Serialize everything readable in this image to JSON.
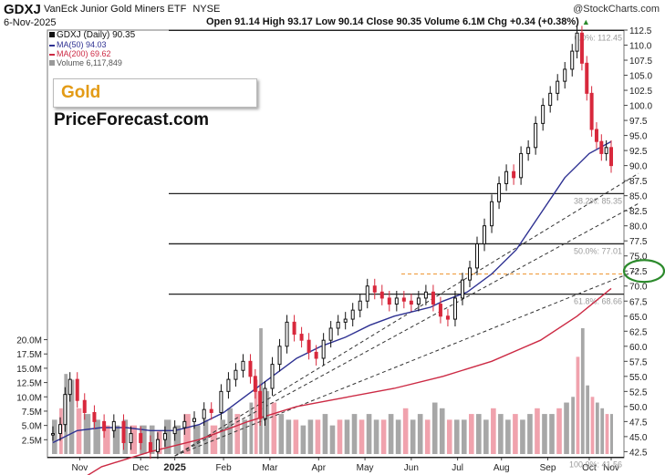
{
  "header": {
    "ticker": "GDXJ",
    "name": "VanEck Junior Gold Miners ETF",
    "exchange": "NYSE",
    "date": "6-Nov-2025",
    "ohlc": "Open 91.14  High 93.17  Low 90.14  Close 90.35  Volume 6.1M  Chg +0.34 (+0.38%)",
    "watermark": "@StockCharts.com",
    "arrow": "▲"
  },
  "legend": {
    "price": "GDXJ (Daily) 90.35",
    "ma50": "MA(50) 94.03",
    "ma200": "MA(200) 69.62",
    "volume": "Volume 6,117,849"
  },
  "logo": {
    "part1": "Gold",
    "part2": "PriceForecast.com"
  },
  "colors": {
    "up": "#111111",
    "down": "#d8283c",
    "ma50": "#2e3192",
    "ma200": "#cc2a44",
    "vol_up": "#a7a7a7",
    "vol_down": "#f0a2ad",
    "fib_line": "#222222",
    "orange": "#f0a24c",
    "circle": "#2c8a2c"
  },
  "chart_data": {
    "type": "candlestick",
    "x_labels": [
      "Nov",
      "Dec",
      "2025",
      "Feb",
      "Mar",
      "Apr",
      "May",
      "Jun",
      "Jul",
      "Aug",
      "Sep",
      "Oct",
      "Nov"
    ],
    "price_ticks": [
      "112.5",
      "110.0",
      "107.5",
      "105.0",
      "102.5",
      "100.0",
      "97.5",
      "95.0",
      "92.5",
      "90.0",
      "87.5",
      "85.0",
      "82.5",
      "80.0",
      "77.5",
      "75.0",
      "72.5",
      "70.0",
      "67.5",
      "65.0",
      "62.5",
      "60.0",
      "57.5",
      "55.0",
      "52.5",
      "50.0",
      "47.5",
      "45.0",
      "42.5"
    ],
    "price_min": 41.5,
    "price_max": 112.5,
    "volume_ticks": [
      "20.0M",
      "17.5M",
      "15.0M",
      "12.5M",
      "10.0M",
      "7.5M",
      "5.0M",
      "2.5M"
    ],
    "fib_levels": [
      {
        "label": "0.0%: 112.45",
        "price": 112.45
      },
      {
        "label": "38.2%: 85.35",
        "price": 85.35
      },
      {
        "label": "50.0%: 77.01",
        "price": 77.01
      },
      {
        "label": "61.8%: 68.66",
        "price": 68.66
      },
      {
        "label": "100.0%: 41.56",
        "price": 41.56
      }
    ],
    "horizontal_dashed": 72.0,
    "circled_level": "72.5",
    "close_path": [
      [
        0,
        45.5
      ],
      [
        6,
        47
      ],
      [
        10,
        52
      ],
      [
        14,
        54.5
      ],
      [
        20,
        51
      ],
      [
        26,
        49
      ],
      [
        34,
        47.5
      ],
      [
        42,
        46
      ],
      [
        50,
        47.5
      ],
      [
        58,
        44
      ],
      [
        64,
        45.5
      ],
      [
        72,
        44
      ],
      [
        80,
        42.5
      ],
      [
        86,
        44.5
      ],
      [
        92,
        45.5
      ],
      [
        100,
        46.5
      ],
      [
        108,
        47.5
      ],
      [
        116,
        48
      ],
      [
        124,
        49.5
      ],
      [
        130,
        49
      ],
      [
        138,
        52.5
      ],
      [
        144,
        54.5
      ],
      [
        150,
        56
      ],
      [
        156,
        57.5
      ],
      [
        162,
        55
      ],
      [
        166,
        52.5
      ],
      [
        170,
        48
      ],
      [
        174,
        53
      ],
      [
        180,
        57
      ],
      [
        186,
        60
      ],
      [
        192,
        64
      ],
      [
        198,
        62
      ],
      [
        204,
        61
      ],
      [
        210,
        59
      ],
      [
        216,
        58
      ],
      [
        222,
        61
      ],
      [
        228,
        63
      ],
      [
        234,
        64
      ],
      [
        240,
        64.5
      ],
      [
        246,
        66
      ],
      [
        252,
        67.5
      ],
      [
        258,
        70
      ],
      [
        264,
        69
      ],
      [
        270,
        68
      ],
      [
        276,
        67
      ],
      [
        282,
        68
      ],
      [
        288,
        67.5
      ],
      [
        294,
        67
      ],
      [
        300,
        68
      ],
      [
        306,
        69
      ],
      [
        312,
        67
      ],
      [
        318,
        65
      ],
      [
        324,
        64.5
      ],
      [
        330,
        68
      ],
      [
        336,
        71
      ],
      [
        342,
        73
      ],
      [
        348,
        77
      ],
      [
        354,
        80
      ],
      [
        360,
        84
      ],
      [
        366,
        87
      ],
      [
        372,
        89
      ],
      [
        378,
        88
      ],
      [
        384,
        92
      ],
      [
        390,
        93
      ],
      [
        396,
        97
      ],
      [
        402,
        100
      ],
      [
        408,
        102
      ],
      [
        414,
        104
      ],
      [
        420,
        106
      ],
      [
        426,
        109
      ],
      [
        430,
        112
      ],
      [
        434,
        107
      ],
      [
        438,
        102
      ],
      [
        442,
        96
      ],
      [
        446,
        94
      ],
      [
        450,
        92
      ],
      [
        454,
        93
      ],
      [
        458,
        90
      ]
    ],
    "ma50_path": [
      [
        0,
        44
      ],
      [
        20,
        46
      ],
      [
        40,
        46.5
      ],
      [
        60,
        46.5
      ],
      [
        80,
        46
      ],
      [
        100,
        46
      ],
      [
        120,
        47
      ],
      [
        140,
        49
      ],
      [
        160,
        52
      ],
      [
        180,
        55
      ],
      [
        200,
        58
      ],
      [
        220,
        60
      ],
      [
        240,
        61.5
      ],
      [
        260,
        63.5
      ],
      [
        280,
        65
      ],
      [
        300,
        66
      ],
      [
        310,
        66.5
      ],
      [
        320,
        67.5
      ],
      [
        340,
        69
      ],
      [
        360,
        72
      ],
      [
        380,
        76
      ],
      [
        400,
        82
      ],
      [
        420,
        88
      ],
      [
        440,
        92
      ],
      [
        458,
        94
      ]
    ],
    "ma200_path": [
      [
        0,
        35
      ],
      [
        40,
        40
      ],
      [
        80,
        42.5
      ],
      [
        120,
        44.5
      ],
      [
        160,
        47.5
      ],
      [
        200,
        50
      ],
      [
        240,
        51.5
      ],
      [
        280,
        53
      ],
      [
        320,
        55
      ],
      [
        360,
        57.5
      ],
      [
        400,
        61
      ],
      [
        430,
        65
      ],
      [
        458,
        69.6
      ]
    ],
    "trend_lines": [
      {
        "from": [
          100,
          41.8
        ],
        "to": [
          458,
          87.5
        ]
      },
      {
        "from": [
          100,
          41.8
        ],
        "to": [
          458,
          82.5
        ]
      },
      {
        "from": [
          100,
          41.8
        ],
        "to": [
          458,
          71.5
        ]
      }
    ],
    "volume_series": [
      [
        0,
        6
      ],
      [
        6,
        8
      ],
      [
        10,
        14
      ],
      [
        14,
        13
      ],
      [
        20,
        8
      ],
      [
        26,
        7
      ],
      [
        34,
        6
      ],
      [
        42,
        5
      ],
      [
        50,
        5
      ],
      [
        58,
        6
      ],
      [
        64,
        5
      ],
      [
        72,
        5
      ],
      [
        80,
        5
      ],
      [
        86,
        4
      ],
      [
        92,
        6
      ],
      [
        100,
        5
      ],
      [
        108,
        7
      ],
      [
        116,
        5
      ],
      [
        124,
        6
      ],
      [
        130,
        5
      ],
      [
        138,
        6
      ],
      [
        144,
        8
      ],
      [
        150,
        7
      ],
      [
        156,
        6
      ],
      [
        162,
        9
      ],
      [
        166,
        13
      ],
      [
        170,
        22
      ],
      [
        174,
        11
      ],
      [
        180,
        9
      ],
      [
        186,
        7
      ],
      [
        192,
        6
      ],
      [
        198,
        6
      ],
      [
        204,
        5
      ],
      [
        210,
        6
      ],
      [
        216,
        6
      ],
      [
        222,
        7
      ],
      [
        228,
        5
      ],
      [
        234,
        6
      ],
      [
        240,
        6
      ],
      [
        246,
        7
      ],
      [
        252,
        6
      ],
      [
        258,
        7
      ],
      [
        264,
        6
      ],
      [
        270,
        6
      ],
      [
        276,
        7
      ],
      [
        282,
        6
      ],
      [
        288,
        8
      ],
      [
        294,
        6
      ],
      [
        300,
        7
      ],
      [
        306,
        6
      ],
      [
        312,
        9
      ],
      [
        318,
        8
      ],
      [
        324,
        6
      ],
      [
        330,
        6
      ],
      [
        336,
        6
      ],
      [
        342,
        7
      ],
      [
        348,
        7
      ],
      [
        354,
        6
      ],
      [
        360,
        8
      ],
      [
        366,
        7
      ],
      [
        372,
        6
      ],
      [
        378,
        7
      ],
      [
        384,
        6
      ],
      [
        390,
        7
      ],
      [
        396,
        8
      ],
      [
        402,
        7
      ],
      [
        408,
        7
      ],
      [
        414,
        8
      ],
      [
        420,
        9
      ],
      [
        426,
        10
      ],
      [
        430,
        17
      ],
      [
        434,
        22
      ],
      [
        438,
        12
      ],
      [
        442,
        10
      ],
      [
        446,
        9
      ],
      [
        450,
        8
      ],
      [
        454,
        7
      ],
      [
        458,
        7
      ]
    ]
  }
}
